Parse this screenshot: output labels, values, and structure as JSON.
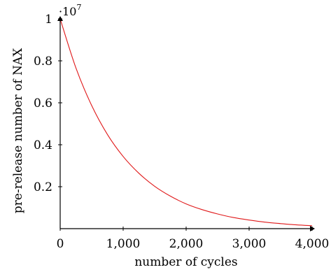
{
  "chart_data": {
    "type": "line",
    "title": "",
    "xlabel": "number of cycles",
    "ylabel": "pre-release number of NAX",
    "y_multiplier": {
      "base": "·10",
      "exponent": "7"
    },
    "xlim": [
      0,
      4000
    ],
    "ylim": [
      0,
      1
    ],
    "x_ticks": [
      {
        "value": 0,
        "label": "0"
      },
      {
        "value": 1000,
        "label": "1,000"
      },
      {
        "value": 2000,
        "label": "2,000"
      },
      {
        "value": 3000,
        "label": "3,000"
      },
      {
        "value": 4000,
        "label": "4,000"
      }
    ],
    "y_ticks": [
      {
        "value": 0.2,
        "label": "0.2"
      },
      {
        "value": 0.4,
        "label": "0.4"
      },
      {
        "value": 0.6,
        "label": "0.6"
      },
      {
        "value": 0.8,
        "label": "0.8"
      },
      {
        "value": 1,
        "label": "1"
      }
    ],
    "grid": false,
    "series": [
      {
        "color": "#e0191a",
        "x": [
          0,
          250,
          500,
          750,
          1000,
          1250,
          1500,
          1750,
          2000,
          2250,
          2500,
          2750,
          3000,
          3250,
          3500,
          3750,
          4000
        ],
        "y": [
          1.0,
          0.766,
          0.587,
          0.449,
          0.344,
          0.264,
          0.202,
          0.155,
          0.118,
          0.091,
          0.07,
          0.053,
          0.041,
          0.031,
          0.024,
          0.018,
          0.014
        ]
      }
    ]
  }
}
